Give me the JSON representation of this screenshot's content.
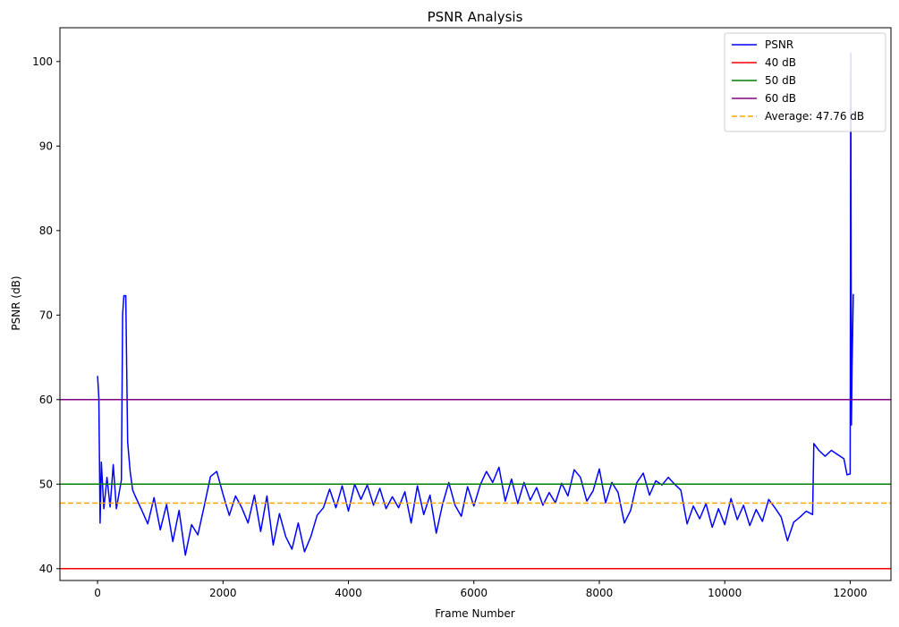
{
  "chart_data": {
    "type": "line",
    "title": "PSNR Analysis",
    "xlabel": "Frame Number",
    "ylabel": "PSNR (dB)",
    "xlim": [
      -600,
      12650
    ],
    "ylim": [
      38.6,
      104
    ],
    "xticks": [
      0,
      2000,
      4000,
      6000,
      8000,
      10000,
      12000
    ],
    "yticks": [
      40,
      50,
      60,
      70,
      80,
      90,
      100
    ],
    "grid": false,
    "legend_position": "top-right",
    "series": [
      {
        "name": "PSNR",
        "color": "#0000ff",
        "style": "solid",
        "x": [
          0,
          20,
          40,
          60,
          100,
          150,
          200,
          250,
          300,
          380,
          400,
          420,
          450,
          480,
          520,
          560,
          600,
          700,
          800,
          900,
          1000,
          1100,
          1200,
          1300,
          1400,
          1500,
          1600,
          1700,
          1800,
          1900,
          2000,
          2100,
          2200,
          2300,
          2400,
          2500,
          2600,
          2700,
          2800,
          2900,
          3000,
          3100,
          3200,
          3300,
          3400,
          3500,
          3600,
          3700,
          3800,
          3900,
          4000,
          4100,
          4200,
          4300,
          4400,
          4500,
          4600,
          4700,
          4800,
          4900,
          5000,
          5100,
          5200,
          5300,
          5400,
          5500,
          5600,
          5700,
          5800,
          5900,
          6000,
          6100,
          6200,
          6300,
          6400,
          6500,
          6600,
          6700,
          6800,
          6900,
          7000,
          7100,
          7200,
          7300,
          7400,
          7500,
          7600,
          7700,
          7800,
          7900,
          8000,
          8100,
          8200,
          8300,
          8400,
          8500,
          8600,
          8700,
          8800,
          8900,
          9000,
          9100,
          9200,
          9300,
          9400,
          9500,
          9600,
          9700,
          9800,
          9900,
          10000,
          10100,
          10200,
          10300,
          10400,
          10500,
          10600,
          10700,
          10800,
          10900,
          11000,
          11100,
          11200,
          11300,
          11400,
          11420,
          11500,
          11600,
          11700,
          11800,
          11900,
          11950,
          12000,
          12010,
          12020,
          12030,
          12050
        ],
        "y": [
          62.8,
          60.2,
          45.4,
          52.6,
          47.1,
          50.8,
          47.3,
          52.3,
          47.1,
          50.5,
          70.1,
          72.3,
          72.3,
          55.0,
          51.5,
          49.3,
          48.6,
          47.0,
          45.3,
          48.4,
          44.6,
          47.6,
          43.2,
          46.9,
          41.6,
          45.2,
          44.0,
          47.4,
          50.9,
          51.5,
          48.8,
          46.3,
          48.6,
          47.2,
          45.4,
          48.7,
          44.4,
          48.6,
          42.8,
          46.5,
          43.8,
          42.3,
          45.4,
          42.0,
          43.8,
          46.3,
          47.2,
          49.4,
          47.2,
          49.8,
          46.8,
          50.0,
          48.2,
          49.9,
          47.5,
          49.5,
          47.1,
          48.5,
          47.2,
          49.1,
          45.4,
          49.8,
          46.4,
          48.7,
          44.2,
          47.6,
          50.2,
          47.5,
          46.2,
          49.7,
          47.4,
          49.9,
          51.5,
          50.2,
          52.0,
          48.0,
          50.6,
          47.7,
          50.2,
          48.1,
          49.6,
          47.5,
          49.0,
          47.8,
          50.1,
          48.6,
          51.7,
          50.8,
          48.0,
          49.2,
          51.8,
          47.8,
          50.2,
          49.0,
          45.4,
          46.9,
          50.2,
          51.3,
          48.7,
          50.4,
          49.9,
          50.8,
          50.0,
          49.3,
          45.3,
          47.4,
          45.9,
          47.7,
          44.9,
          47.1,
          45.2,
          48.3,
          45.8,
          47.5,
          45.1,
          47.0,
          45.6,
          48.2,
          47.2,
          46.1,
          43.3,
          45.5,
          46.1,
          46.8,
          46.4,
          54.8,
          54.0,
          53.3,
          54.0,
          53.5,
          53.0,
          51.1,
          51.2,
          101.0,
          57.0,
          63.8,
          72.5
        ]
      },
      {
        "name": "40 dB",
        "color": "#ff0000",
        "style": "solid",
        "hline": 40
      },
      {
        "name": "50 dB",
        "color": "#008000",
        "style": "solid",
        "hline": 50
      },
      {
        "name": "60 dB",
        "color": "#800080",
        "style": "solid",
        "hline": 60
      },
      {
        "name": "Average: 47.76 dB",
        "color": "#ffa500",
        "style": "dashed",
        "hline": 47.76
      }
    ]
  }
}
